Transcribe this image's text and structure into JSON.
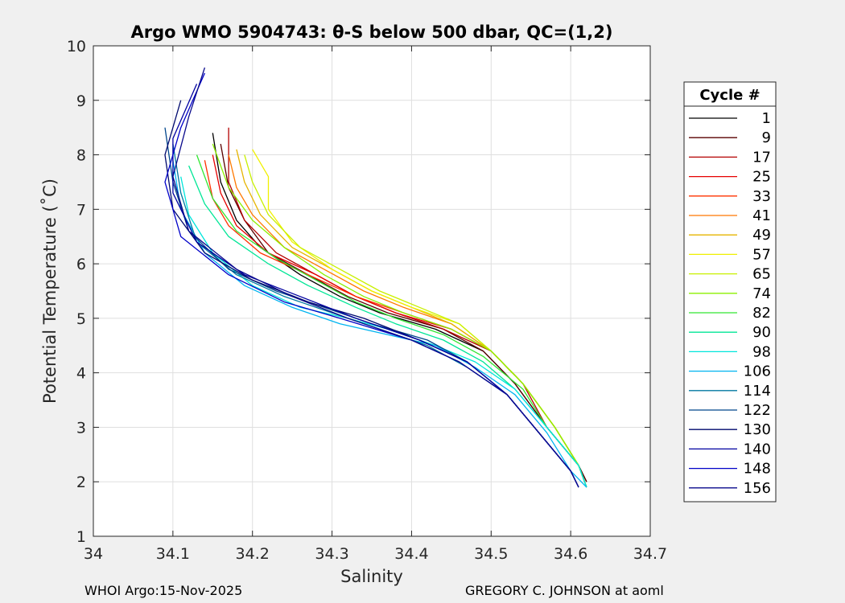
{
  "chart_data": {
    "type": "line",
    "title": "Argo WMO 5904743: θ-S below 500 dbar,  QC=(1,2)",
    "xlabel": "Salinity",
    "ylabel": "Potential Temperature (˚C)",
    "xlim": [
      34,
      34.7
    ],
    "ylim": [
      1,
      10
    ],
    "xticks": [
      34,
      34.1,
      34.2,
      34.3,
      34.4,
      34.5,
      34.6,
      34.7
    ],
    "xtick_labels": [
      "34",
      "34.1",
      "34.2",
      "34.3",
      "34.4",
      "34.5",
      "34.6",
      "34.7"
    ],
    "yticks": [
      1,
      2,
      3,
      4,
      5,
      6,
      7,
      8,
      9,
      10
    ],
    "ytick_labels": [
      "1",
      "2",
      "3",
      "4",
      "5",
      "6",
      "7",
      "8",
      "9",
      "10"
    ],
    "grid": true,
    "legend_title": "Cycle #",
    "legend_placement": "right-outside",
    "series": [
      {
        "name": "1",
        "color": "#000000",
        "x": [
          34.15,
          34.16,
          34.18,
          34.21,
          34.26,
          34.31,
          34.36,
          34.43,
          34.49,
          34.53,
          34.57,
          34.61,
          34.62
        ],
        "y": [
          8.4,
          7.5,
          6.8,
          6.3,
          5.8,
          5.4,
          5.1,
          4.8,
          4.4,
          3.8,
          3.0,
          2.3,
          2.0
        ]
      },
      {
        "name": "9",
        "color": "#5a0000",
        "x": [
          34.16,
          34.17,
          34.19,
          34.22,
          34.27,
          34.32,
          34.37,
          34.44,
          34.49,
          34.53,
          34.57,
          34.61,
          34.62
        ],
        "y": [
          8.2,
          7.4,
          6.8,
          6.2,
          5.8,
          5.4,
          5.1,
          4.8,
          4.4,
          3.8,
          3.0,
          2.3,
          2.0
        ]
      },
      {
        "name": "17",
        "color": "#b40000",
        "x": [
          34.17,
          34.17,
          34.19,
          34.23,
          34.28,
          34.33,
          34.38,
          34.44,
          34.5,
          34.54,
          34.57,
          34.61,
          34.62
        ],
        "y": [
          8.5,
          7.5,
          6.8,
          6.2,
          5.8,
          5.4,
          5.1,
          4.8,
          4.4,
          3.8,
          3.0,
          2.3,
          1.9
        ]
      },
      {
        "name": "25",
        "color": "#e60000",
        "x": [
          34.15,
          34.16,
          34.18,
          34.22,
          34.28,
          34.33,
          34.38,
          34.45,
          34.5,
          34.54,
          34.58,
          34.61,
          34.62
        ],
        "y": [
          8.0,
          7.3,
          6.7,
          6.2,
          5.8,
          5.4,
          5.1,
          4.8,
          4.4,
          3.8,
          3.0,
          2.3,
          1.9
        ]
      },
      {
        "name": "33",
        "color": "#ff3200",
        "x": [
          34.14,
          34.15,
          34.17,
          34.21,
          34.27,
          34.33,
          34.39,
          34.45,
          34.5,
          34.54,
          34.58,
          34.61,
          34.62
        ],
        "y": [
          7.9,
          7.2,
          6.7,
          6.2,
          5.8,
          5.4,
          5.1,
          4.8,
          4.4,
          3.8,
          3.0,
          2.3,
          1.9
        ]
      },
      {
        "name": "41",
        "color": "#ff7800",
        "x": [
          34.17,
          34.18,
          34.2,
          34.24,
          34.29,
          34.34,
          34.39,
          34.45,
          34.5,
          34.54,
          34.58,
          34.61,
          34.62
        ],
        "y": [
          8.0,
          7.4,
          6.9,
          6.3,
          5.9,
          5.5,
          5.2,
          4.9,
          4.4,
          3.8,
          3.0,
          2.3,
          1.9
        ]
      },
      {
        "name": "49",
        "color": "#e6b400",
        "x": [
          34.18,
          34.19,
          34.21,
          34.25,
          34.3,
          34.35,
          34.4,
          34.45,
          34.5,
          34.54,
          34.58,
          34.61,
          34.62
        ],
        "y": [
          8.1,
          7.5,
          6.9,
          6.3,
          5.9,
          5.5,
          5.2,
          4.9,
          4.4,
          3.8,
          3.0,
          2.3,
          1.9
        ]
      },
      {
        "name": "57",
        "color": "#f0f000",
        "x": [
          34.2,
          34.22,
          34.22,
          34.25,
          34.3,
          34.35,
          34.4,
          34.46,
          34.5,
          34.54,
          34.58,
          34.61,
          34.62
        ],
        "y": [
          8.1,
          7.6,
          7.0,
          6.4,
          5.9,
          5.5,
          5.2,
          4.9,
          4.4,
          3.8,
          3.0,
          2.3,
          1.9
        ]
      },
      {
        "name": "65",
        "color": "#c8f000",
        "x": [
          34.19,
          34.2,
          34.22,
          34.26,
          34.31,
          34.36,
          34.41,
          34.46,
          34.5,
          34.54,
          34.58,
          34.61,
          34.62
        ],
        "y": [
          8.0,
          7.5,
          6.9,
          6.3,
          5.9,
          5.5,
          5.2,
          4.9,
          4.4,
          3.8,
          3.0,
          2.3,
          1.9
        ]
      },
      {
        "name": "74",
        "color": "#8cf000",
        "x": [
          34.15,
          34.17,
          34.2,
          34.24,
          34.29,
          34.34,
          34.39,
          34.45,
          34.5,
          34.54,
          34.58,
          34.61,
          34.62
        ],
        "y": [
          8.2,
          7.4,
          6.8,
          6.3,
          5.8,
          5.4,
          5.1,
          4.8,
          4.4,
          3.8,
          3.0,
          2.3,
          1.9
        ]
      },
      {
        "name": "82",
        "color": "#32e632",
        "x": [
          34.13,
          34.15,
          34.18,
          34.23,
          34.28,
          34.33,
          34.38,
          34.44,
          34.49,
          34.54,
          34.57,
          34.61,
          34.62
        ],
        "y": [
          8.0,
          7.2,
          6.6,
          6.1,
          5.7,
          5.3,
          5.0,
          4.7,
          4.3,
          3.7,
          3.0,
          2.3,
          1.9
        ]
      },
      {
        "name": "90",
        "color": "#00e696",
        "x": [
          34.12,
          34.14,
          34.17,
          34.22,
          34.27,
          34.33,
          34.38,
          34.44,
          34.49,
          34.53,
          34.57,
          34.61,
          34.62
        ],
        "y": [
          7.8,
          7.1,
          6.5,
          6.0,
          5.6,
          5.2,
          4.9,
          4.6,
          4.2,
          3.7,
          3.0,
          2.3,
          1.9
        ]
      },
      {
        "name": "98",
        "color": "#00e6dc",
        "x": [
          34.11,
          34.12,
          34.15,
          34.2,
          34.26,
          34.32,
          34.37,
          34.43,
          34.48,
          34.53,
          34.57,
          34.61,
          34.62
        ],
        "y": [
          7.6,
          6.9,
          6.2,
          5.6,
          5.2,
          5.0,
          4.8,
          4.5,
          4.2,
          3.7,
          3.0,
          2.3,
          1.9
        ]
      },
      {
        "name": "106",
        "color": "#00b4f0",
        "x": [
          34.1,
          34.11,
          34.14,
          34.19,
          34.25,
          34.31,
          34.37,
          34.43,
          34.48,
          34.53,
          34.57,
          34.6,
          34.62
        ],
        "y": [
          7.9,
          7.0,
          6.2,
          5.6,
          5.2,
          4.9,
          4.7,
          4.5,
          4.1,
          3.6,
          2.9,
          2.2,
          1.9
        ]
      },
      {
        "name": "114",
        "color": "#0078a0",
        "x": [
          34.1,
          34.11,
          34.13,
          34.18,
          34.24,
          34.3,
          34.36,
          34.42,
          34.47,
          34.52,
          34.56,
          34.6,
          34.61
        ],
        "y": [
          8.2,
          7.3,
          6.4,
          5.8,
          5.4,
          5.1,
          4.8,
          4.5,
          4.1,
          3.6,
          2.9,
          2.2,
          1.9
        ]
      },
      {
        "name": "122",
        "color": "#00468c",
        "x": [
          34.09,
          34.1,
          34.12,
          34.17,
          34.23,
          34.29,
          34.35,
          34.42,
          34.47,
          34.52,
          34.56,
          34.6,
          34.61
        ],
        "y": [
          8.5,
          7.5,
          6.6,
          5.9,
          5.5,
          5.2,
          4.9,
          4.6,
          4.2,
          3.6,
          2.9,
          2.2,
          1.9
        ]
      },
      {
        "name": "130",
        "color": "#000a6e",
        "x": [
          34.11,
          34.09,
          34.1,
          34.14,
          34.2,
          34.27,
          34.34,
          34.41,
          34.47,
          34.52,
          34.56,
          34.6,
          34.61
        ],
        "y": [
          9.0,
          8.0,
          7.0,
          6.2,
          5.7,
          5.3,
          5.0,
          4.6,
          4.2,
          3.6,
          2.9,
          2.2,
          1.9
        ]
      },
      {
        "name": "140",
        "color": "#0000a0",
        "x": [
          34.13,
          34.1,
          34.1,
          34.13,
          34.19,
          34.26,
          34.33,
          34.41,
          34.47,
          34.52,
          34.56,
          34.6,
          34.61
        ],
        "y": [
          9.3,
          8.3,
          7.3,
          6.4,
          5.8,
          5.4,
          5.0,
          4.6,
          4.2,
          3.6,
          2.9,
          2.2,
          1.9
        ]
      },
      {
        "name": "148",
        "color": "#0000c8",
        "x": [
          34.14,
          34.11,
          34.09,
          34.11,
          34.17,
          34.24,
          34.31,
          34.4,
          34.46,
          34.52,
          34.56,
          34.6,
          34.61
        ],
        "y": [
          9.5,
          8.5,
          7.5,
          6.5,
          5.8,
          5.3,
          5.0,
          4.6,
          4.2,
          3.6,
          2.9,
          2.2,
          1.9
        ]
      },
      {
        "name": "156",
        "color": "#0a0a8c",
        "x": [
          34.14,
          34.12,
          34.1,
          34.12,
          34.18,
          34.25,
          34.32,
          34.4,
          34.46,
          34.52,
          34.56,
          34.6,
          34.61
        ],
        "y": [
          9.6,
          8.7,
          7.6,
          6.6,
          5.9,
          5.4,
          5.0,
          4.6,
          4.2,
          3.6,
          2.9,
          2.2,
          1.9
        ]
      }
    ]
  },
  "footer": {
    "left": "WHOI Argo:15-Nov-2025",
    "right": "GREGORY C. JOHNSON at aoml"
  }
}
